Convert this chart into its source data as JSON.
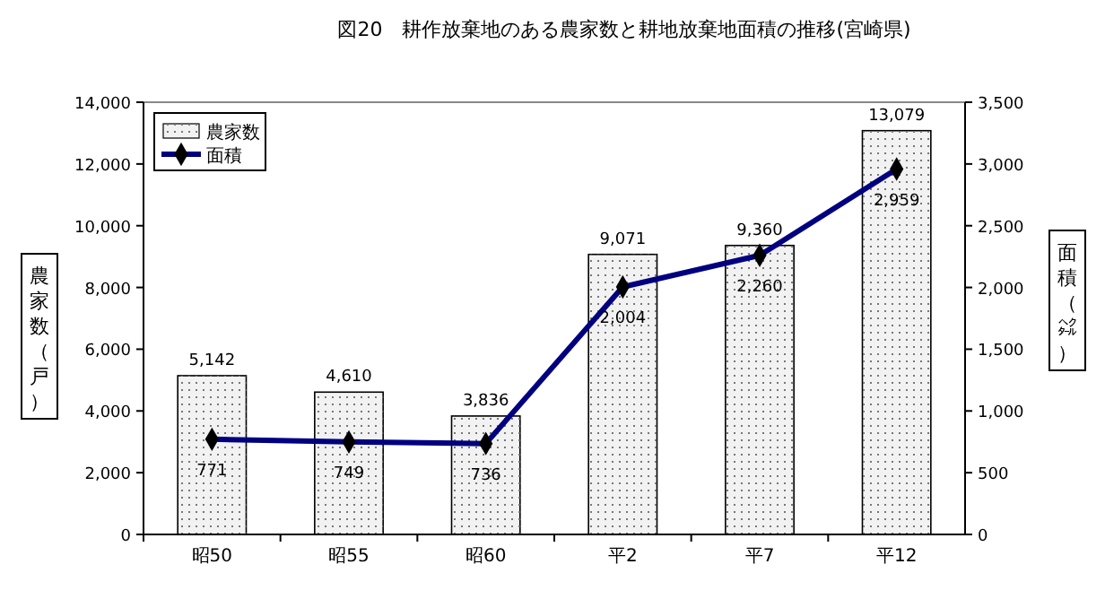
{
  "chart_data": {
    "type": "bar",
    "title": "図20　耕作放棄地のある農家数と耕地放棄地面積の推移(宮崎県)",
    "ylabel": "農家数（戸）",
    "y2label": "面積（㌶）",
    "categories": [
      "昭50",
      "昭55",
      "昭60",
      "平2",
      "平7",
      "平12"
    ],
    "series": [
      {
        "name": "農家数",
        "color": "#f2f2f2",
        "values": [
          5142,
          4610,
          3836,
          9071,
          9360,
          13079
        ],
        "value_labels": [
          "5,142",
          "4,610",
          "3,836",
          "9,071",
          "9,360",
          "13,079"
        ]
      },
      {
        "name": "面積",
        "type": "line",
        "axis": "y2",
        "color": "#000080",
        "marker": "diamond",
        "values": [
          771,
          749,
          736,
          2004,
          2260,
          2959
        ],
        "value_labels": [
          "771",
          "749",
          "736",
          "2,004",
          "2,260",
          "2,959"
        ]
      }
    ],
    "ylim": [
      0,
      14000
    ],
    "yticks": [
      {
        "value": 0,
        "label": "0"
      },
      {
        "value": 2000,
        "label": "2,000"
      },
      {
        "value": 4000,
        "label": "4,000"
      },
      {
        "value": 6000,
        "label": "6,000"
      },
      {
        "value": 8000,
        "label": "8,000"
      },
      {
        "value": 10000,
        "label": "10,000"
      },
      {
        "value": 12000,
        "label": "12,000"
      },
      {
        "value": 14000,
        "label": "14,000"
      }
    ],
    "y2lim": [
      0,
      3500
    ],
    "y2ticks": [
      {
        "value": 0,
        "label": "0"
      },
      {
        "value": 500,
        "label": "500"
      },
      {
        "value": 1000,
        "label": "1,000"
      },
      {
        "value": 1500,
        "label": "1,500"
      },
      {
        "value": 2000,
        "label": "2,000"
      },
      {
        "value": 2500,
        "label": "2,500"
      },
      {
        "value": 3000,
        "label": "3,000"
      },
      {
        "value": 3500,
        "label": "3,500"
      }
    ],
    "legend": "top left",
    "grid": false
  }
}
